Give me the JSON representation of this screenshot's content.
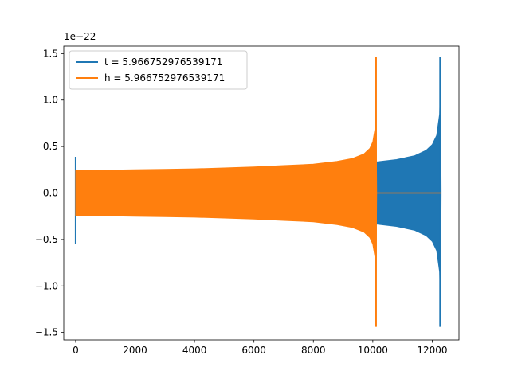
{
  "chart_data": {
    "type": "line",
    "title": "",
    "xlabel": "",
    "ylabel": "",
    "xlim": [
      -400,
      12900
    ],
    "ylim": [
      -1.58,
      1.58
    ],
    "y_offset_text": "1e−22",
    "x_ticks": [
      0,
      2000,
      4000,
      6000,
      8000,
      10000,
      12000
    ],
    "x_tick_labels": [
      "0",
      "2000",
      "4000",
      "6000",
      "8000",
      "10000",
      "12000"
    ],
    "y_ticks": [
      -1.5,
      -1.0,
      -0.5,
      0.0,
      0.5,
      1.0,
      1.5
    ],
    "y_tick_labels": [
      "−1.5",
      "−1.0",
      "−0.5",
      "0.0",
      "0.5",
      "1.0",
      "1.5"
    ],
    "grid": false,
    "legend_position": "upper-left",
    "series": [
      {
        "name": "t = 5.966752976539171",
        "color": "#1f77b4",
        "envelope": {
          "x": [
            0,
            1000,
            2000,
            3000,
            4000,
            5000,
            6000,
            7000,
            8000,
            9000,
            10000,
            10800,
            11400,
            11800,
            12000,
            12150,
            12250,
            12280,
            12300
          ],
          "upper": [
            0.23,
            0.235,
            0.24,
            0.245,
            0.25,
            0.255,
            0.265,
            0.275,
            0.29,
            0.31,
            0.33,
            0.36,
            0.4,
            0.46,
            0.52,
            0.62,
            0.85,
            1.2,
            0.0
          ],
          "lower": [
            -0.23,
            -0.235,
            -0.24,
            -0.245,
            -0.25,
            -0.255,
            -0.265,
            -0.275,
            -0.29,
            -0.31,
            -0.33,
            -0.36,
            -0.4,
            -0.46,
            -0.52,
            -0.62,
            -0.85,
            -1.2,
            0.0
          ]
        },
        "spikes": [
          {
            "x": 0,
            "max": 0.39,
            "min": -0.55
          },
          {
            "x": 12265,
            "max": 1.46,
            "min": -1.44
          }
        ]
      },
      {
        "name": "h = 5.966752976539171",
        "color": "#ff7f0e",
        "envelope": {
          "x": [
            0,
            1000,
            2000,
            3000,
            4000,
            5000,
            6000,
            7000,
            8000,
            8800,
            9300,
            9700,
            9900,
            10000,
            10080,
            10110,
            10130
          ],
          "upper": [
            0.24,
            0.245,
            0.25,
            0.255,
            0.26,
            0.27,
            0.28,
            0.295,
            0.31,
            0.34,
            0.37,
            0.42,
            0.48,
            0.55,
            0.7,
            0.95,
            0.0
          ],
          "lower": [
            -0.24,
            -0.245,
            -0.25,
            -0.255,
            -0.26,
            -0.27,
            -0.28,
            -0.295,
            -0.31,
            -0.34,
            -0.37,
            -0.42,
            -0.48,
            -0.55,
            -0.7,
            -0.95,
            0.0
          ]
        },
        "spikes": [
          {
            "x": 10110,
            "max": 1.46,
            "min": -1.44
          }
        ],
        "flat_segment": {
          "x_start": 10130,
          "x_end": 12300,
          "y": 0.0
        }
      }
    ]
  }
}
